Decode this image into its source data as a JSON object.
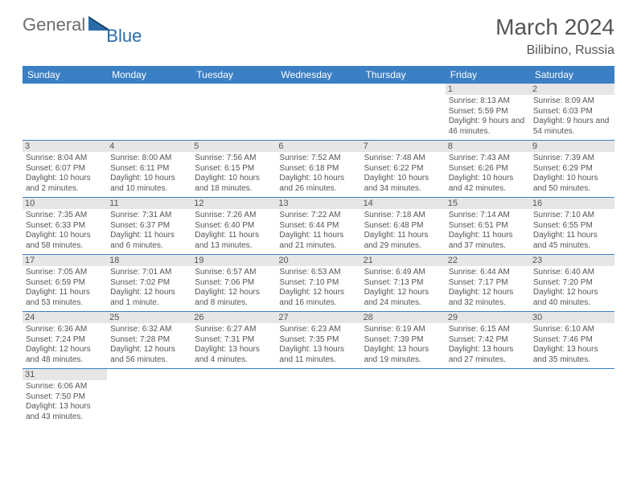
{
  "logo": {
    "general": "General",
    "blue": "Blue"
  },
  "title": "March 2024",
  "location": "Bilibino, Russia",
  "colors": {
    "header_bg": "#3b7fc4",
    "header_text": "#ffffff",
    "daynum_bg": "#e6e6e6",
    "text": "#555555",
    "border": "#3b7fc4",
    "logo_general": "#6d6d6d",
    "logo_blue": "#2a6ca8"
  },
  "dayNames": [
    "Sunday",
    "Monday",
    "Tuesday",
    "Wednesday",
    "Thursday",
    "Friday",
    "Saturday"
  ],
  "weeks": [
    [
      null,
      null,
      null,
      null,
      null,
      {
        "n": "1",
        "sr": "8:13 AM",
        "ss": "5:59 PM",
        "dl": "9 hours and 46 minutes."
      },
      {
        "n": "2",
        "sr": "8:09 AM",
        "ss": "6:03 PM",
        "dl": "9 hours and 54 minutes."
      }
    ],
    [
      {
        "n": "3",
        "sr": "8:04 AM",
        "ss": "6:07 PM",
        "dl": "10 hours and 2 minutes."
      },
      {
        "n": "4",
        "sr": "8:00 AM",
        "ss": "6:11 PM",
        "dl": "10 hours and 10 minutes."
      },
      {
        "n": "5",
        "sr": "7:56 AM",
        "ss": "6:15 PM",
        "dl": "10 hours and 18 minutes."
      },
      {
        "n": "6",
        "sr": "7:52 AM",
        "ss": "6:18 PM",
        "dl": "10 hours and 26 minutes."
      },
      {
        "n": "7",
        "sr": "7:48 AM",
        "ss": "6:22 PM",
        "dl": "10 hours and 34 minutes."
      },
      {
        "n": "8",
        "sr": "7:43 AM",
        "ss": "6:26 PM",
        "dl": "10 hours and 42 minutes."
      },
      {
        "n": "9",
        "sr": "7:39 AM",
        "ss": "6:29 PM",
        "dl": "10 hours and 50 minutes."
      }
    ],
    [
      {
        "n": "10",
        "sr": "7:35 AM",
        "ss": "6:33 PM",
        "dl": "10 hours and 58 minutes."
      },
      {
        "n": "11",
        "sr": "7:31 AM",
        "ss": "6:37 PM",
        "dl": "11 hours and 6 minutes."
      },
      {
        "n": "12",
        "sr": "7:26 AM",
        "ss": "6:40 PM",
        "dl": "11 hours and 13 minutes."
      },
      {
        "n": "13",
        "sr": "7:22 AM",
        "ss": "6:44 PM",
        "dl": "11 hours and 21 minutes."
      },
      {
        "n": "14",
        "sr": "7:18 AM",
        "ss": "6:48 PM",
        "dl": "11 hours and 29 minutes."
      },
      {
        "n": "15",
        "sr": "7:14 AM",
        "ss": "6:51 PM",
        "dl": "11 hours and 37 minutes."
      },
      {
        "n": "16",
        "sr": "7:10 AM",
        "ss": "6:55 PM",
        "dl": "11 hours and 45 minutes."
      }
    ],
    [
      {
        "n": "17",
        "sr": "7:05 AM",
        "ss": "6:59 PM",
        "dl": "11 hours and 53 minutes."
      },
      {
        "n": "18",
        "sr": "7:01 AM",
        "ss": "7:02 PM",
        "dl": "12 hours and 1 minute."
      },
      {
        "n": "19",
        "sr": "6:57 AM",
        "ss": "7:06 PM",
        "dl": "12 hours and 8 minutes."
      },
      {
        "n": "20",
        "sr": "6:53 AM",
        "ss": "7:10 PM",
        "dl": "12 hours and 16 minutes."
      },
      {
        "n": "21",
        "sr": "6:49 AM",
        "ss": "7:13 PM",
        "dl": "12 hours and 24 minutes."
      },
      {
        "n": "22",
        "sr": "6:44 AM",
        "ss": "7:17 PM",
        "dl": "12 hours and 32 minutes."
      },
      {
        "n": "23",
        "sr": "6:40 AM",
        "ss": "7:20 PM",
        "dl": "12 hours and 40 minutes."
      }
    ],
    [
      {
        "n": "24",
        "sr": "6:36 AM",
        "ss": "7:24 PM",
        "dl": "12 hours and 48 minutes."
      },
      {
        "n": "25",
        "sr": "6:32 AM",
        "ss": "7:28 PM",
        "dl": "12 hours and 56 minutes."
      },
      {
        "n": "26",
        "sr": "6:27 AM",
        "ss": "7:31 PM",
        "dl": "13 hours and 4 minutes."
      },
      {
        "n": "27",
        "sr": "6:23 AM",
        "ss": "7:35 PM",
        "dl": "13 hours and 11 minutes."
      },
      {
        "n": "28",
        "sr": "6:19 AM",
        "ss": "7:39 PM",
        "dl": "13 hours and 19 minutes."
      },
      {
        "n": "29",
        "sr": "6:15 AM",
        "ss": "7:42 PM",
        "dl": "13 hours and 27 minutes."
      },
      {
        "n": "30",
        "sr": "6:10 AM",
        "ss": "7:46 PM",
        "dl": "13 hours and 35 minutes."
      }
    ],
    [
      {
        "n": "31",
        "sr": "6:06 AM",
        "ss": "7:50 PM",
        "dl": "13 hours and 43 minutes."
      },
      null,
      null,
      null,
      null,
      null,
      null
    ]
  ],
  "labels": {
    "sunrise": "Sunrise:",
    "sunset": "Sunset:",
    "daylight": "Daylight:"
  }
}
